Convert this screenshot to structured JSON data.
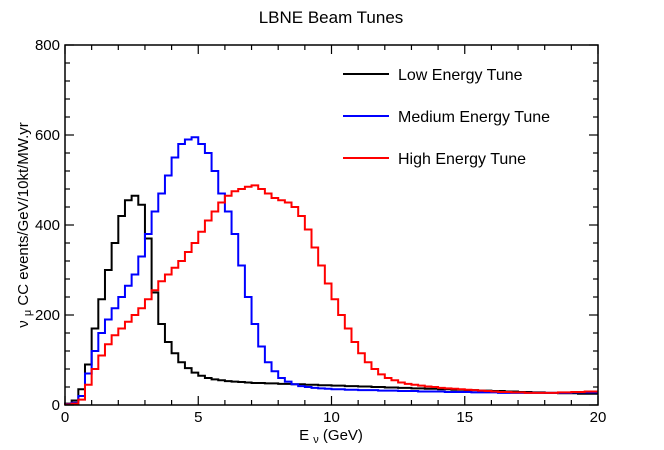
{
  "chart_data": {
    "type": "line",
    "style": "step",
    "title": "LBNE Beam Tunes",
    "xlabel": {
      "symbol": "E",
      "subscript": "ν",
      "unit": "(GeV)"
    },
    "ylabel": {
      "symbol": "ν",
      "subscript": "μ",
      "rest": "CC events/GeV/10kt/MW.yr"
    },
    "xlim": [
      0,
      20
    ],
    "ylim": [
      0,
      800
    ],
    "x_ticks": [
      0,
      5,
      10,
      15,
      20
    ],
    "y_ticks": [
      0,
      200,
      400,
      600,
      800
    ],
    "bin_width": 0.25,
    "legend_position": "top-right",
    "series": [
      {
        "name": "Low Energy Tune",
        "color": "#000000",
        "values": [
          3,
          10,
          35,
          90,
          170,
          235,
          300,
          360,
          420,
          455,
          465,
          445,
          370,
          250,
          180,
          140,
          115,
          95,
          82,
          72,
          65,
          60,
          57,
          55,
          53,
          52,
          51,
          50,
          49,
          49,
          48,
          48,
          47,
          47,
          46,
          46,
          45,
          45,
          44,
          44,
          43,
          43,
          42,
          42,
          41,
          41,
          40,
          40,
          39,
          39,
          38,
          38,
          37,
          37,
          36,
          36,
          35,
          35,
          34,
          34,
          33,
          33,
          32,
          32,
          31,
          31,
          30,
          30,
          29,
          29,
          28,
          28,
          27,
          27,
          26,
          26,
          26,
          25,
          25,
          25
        ]
      },
      {
        "name": "Medium Energy Tune",
        "color": "#0000ff",
        "values": [
          2,
          5,
          20,
          70,
          120,
          160,
          190,
          215,
          240,
          265,
          290,
          330,
          380,
          430,
          470,
          510,
          550,
          580,
          590,
          595,
          580,
          560,
          520,
          470,
          430,
          380,
          310,
          240,
          180,
          130,
          95,
          75,
          60,
          52,
          46,
          42,
          40,
          38,
          37,
          36,
          35,
          35,
          34,
          34,
          33,
          33,
          33,
          32,
          32,
          32,
          31,
          31,
          31,
          30,
          30,
          30,
          30,
          29,
          29,
          29,
          29,
          28,
          28,
          28,
          28,
          27,
          27,
          27,
          27,
          27,
          27,
          27,
          27,
          27,
          27,
          27,
          28,
          28,
          28,
          28
        ]
      },
      {
        "name": "High Energy Tune",
        "color": "#ff0000",
        "values": [
          1,
          3,
          12,
          45,
          80,
          110,
          135,
          155,
          170,
          185,
          200,
          215,
          235,
          255,
          275,
          290,
          305,
          320,
          340,
          360,
          385,
          410,
          430,
          450,
          465,
          475,
          480,
          485,
          488,
          480,
          470,
          460,
          455,
          450,
          440,
          420,
          390,
          350,
          310,
          270,
          235,
          200,
          170,
          140,
          115,
          95,
          80,
          68,
          60,
          55,
          50,
          47,
          45,
          43,
          41,
          40,
          38,
          37,
          36,
          35,
          34,
          33,
          32,
          31,
          30,
          29,
          29,
          28,
          28,
          27,
          27,
          27,
          27,
          27,
          28,
          28,
          29,
          29,
          30,
          30
        ]
      }
    ]
  }
}
